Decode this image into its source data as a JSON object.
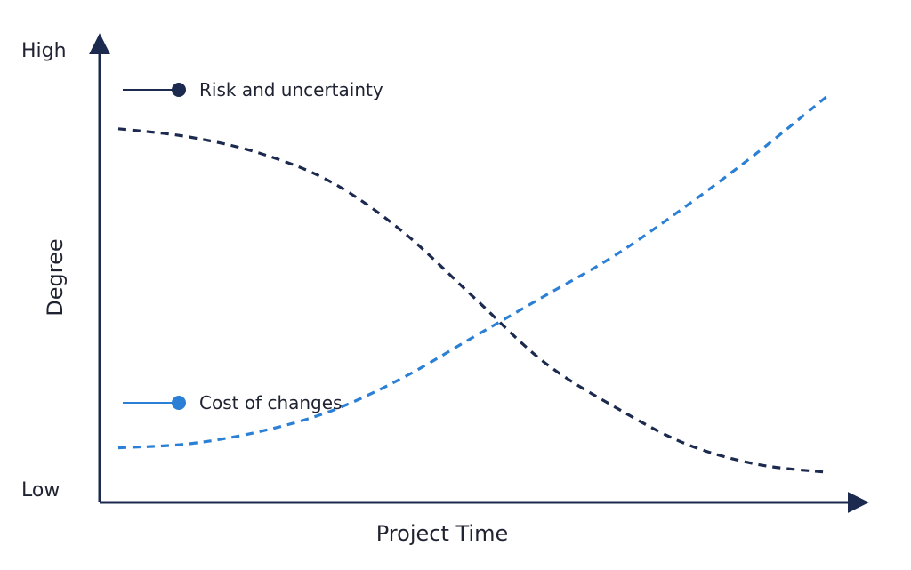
{
  "chart_data": {
    "type": "line",
    "title": "",
    "xlabel": "Project Time",
    "ylabel": "Degree",
    "y_tick_labels": {
      "high": "High",
      "low": "Low"
    },
    "xlim": [
      0,
      1
    ],
    "ylim": [
      0,
      1
    ],
    "grid": false,
    "legend_placement": "inline-left",
    "series": [
      {
        "name": "Risk and uncertainty",
        "color": "#1b2a4e",
        "line_style": "dashed",
        "x": [
          0.0,
          0.1,
          0.2,
          0.3,
          0.4,
          0.5,
          0.6,
          0.7,
          0.8,
          0.9,
          1.0
        ],
        "y": [
          0.87,
          0.85,
          0.81,
          0.74,
          0.62,
          0.46,
          0.3,
          0.19,
          0.1,
          0.05,
          0.03
        ]
      },
      {
        "name": "Cost of changes",
        "color": "#2b7fd4",
        "line_style": "dashed",
        "x": [
          0.0,
          0.1,
          0.2,
          0.3,
          0.4,
          0.5,
          0.6,
          0.7,
          0.8,
          0.9,
          1.0
        ],
        "y": [
          0.09,
          0.1,
          0.13,
          0.18,
          0.26,
          0.36,
          0.46,
          0.56,
          0.68,
          0.81,
          0.95
        ]
      }
    ]
  }
}
